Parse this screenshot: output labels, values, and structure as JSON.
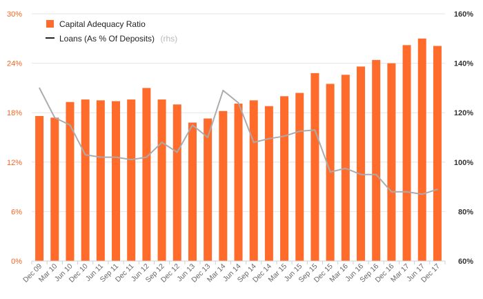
{
  "colors": {
    "bar": "#ff6b2b",
    "line": "#ababab",
    "legend_line": "#222222",
    "left_axis_text": "#f26522",
    "right_axis_text": "#333333",
    "grid": "#e4e4e4"
  },
  "legend": {
    "bar_label": "Capital Adequacy Ratio",
    "line_label": "Loans (As % Of Deposits)",
    "line_note": "(rhs)"
  },
  "chart_data": {
    "type": "bar",
    "categories": [
      "Dec 09",
      "Mar 10",
      "Jun 10",
      "Dec 10",
      "Jun 11",
      "Sep 11",
      "Dec 11",
      "Jun 12",
      "Sep 12",
      "Dec 12",
      "Jun 13",
      "Dec 13",
      "Mar 14",
      "Jun 14",
      "Sep 14",
      "Dec 14",
      "Mar 15",
      "Jun 15",
      "Sep 15",
      "Dec 15",
      "Mar 16",
      "Jun 16",
      "Sep 16",
      "Dec 16",
      "Mar 17",
      "Jun 17",
      "Dec 17"
    ],
    "series": [
      {
        "name": "Capital Adequacy Ratio",
        "type": "bar",
        "axis": "left",
        "values": [
          17.6,
          17.4,
          19.3,
          19.6,
          19.5,
          19.4,
          19.6,
          21.0,
          19.6,
          19.0,
          16.8,
          17.3,
          18.2,
          19.1,
          19.5,
          18.8,
          20.0,
          20.4,
          22.8,
          21.5,
          22.6,
          23.6,
          24.4,
          24.0,
          26.2,
          27.0,
          26.1
        ]
      },
      {
        "name": "Loans (As % Of Deposits)",
        "type": "line",
        "axis": "right",
        "values": [
          130,
          118,
          115,
          103,
          102,
          102,
          101,
          102,
          108,
          104,
          115,
          110,
          129,
          124,
          108,
          109.5,
          110.5,
          112.5,
          113,
          96,
          97.5,
          95,
          95,
          88,
          88,
          87,
          89
        ]
      }
    ],
    "left_axis": {
      "ticks": [
        "0%",
        "6%",
        "12%",
        "18%",
        "24%",
        "30%"
      ],
      "ylim": [
        0,
        30
      ]
    },
    "right_axis": {
      "ticks": [
        "60%",
        "80%",
        "100%",
        "120%",
        "140%",
        "160%"
      ],
      "ylim": [
        60,
        160
      ]
    },
    "grid": true,
    "legend_position": "top-left"
  }
}
